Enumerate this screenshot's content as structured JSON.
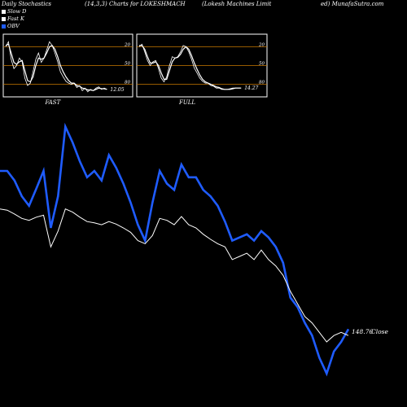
{
  "header": {
    "left": "Daily Stochastics",
    "center": "(14,3,3) Charts for LOKESHMACH",
    "right": "(Lokesh Machines Limit",
    "far_right": "ed) MunafaSutra.com"
  },
  "legend": [
    {
      "label": "Slow  D",
      "color": "#ffffff"
    },
    {
      "label": "Fast K",
      "color": "#ffffff"
    },
    {
      "label": "OBV",
      "color": "#1f5cff"
    }
  ],
  "colors": {
    "background": "#000000",
    "level_line": "#c87800",
    "obv": "#1f5cff",
    "price": "#ffffff"
  },
  "chart_data": [
    {
      "type": "line",
      "label": "FAST",
      "last_value_label": "12.05",
      "ylim": [
        0,
        100
      ],
      "level_lines": [
        20,
        50,
        80
      ],
      "tick_labels": [
        "80",
        "50",
        "20"
      ],
      "series": [
        {
          "name": "Fast K",
          "values": [
            80,
            88,
            60,
            45,
            50,
            62,
            56,
            30,
            18,
            22,
            40,
            60,
            70,
            55,
            62,
            75,
            88,
            82,
            70,
            56,
            40,
            32,
            25,
            22,
            20,
            22,
            15,
            18,
            10,
            14,
            8,
            12,
            10,
            14,
            16,
            12,
            14,
            12
          ]
        },
        {
          "name": "Slow  D",
          "values": [
            82,
            84,
            70,
            55,
            52,
            56,
            58,
            42,
            26,
            24,
            32,
            50,
            62,
            60,
            62,
            70,
            80,
            82,
            76,
            64,
            50,
            40,
            32,
            26,
            22,
            22,
            18,
            17,
            14,
            13,
            11,
            11,
            10,
            12,
            14,
            13,
            13,
            12
          ]
        }
      ]
    },
    {
      "type": "line",
      "label": "FULL",
      "last_value_label": "14.27",
      "ylim": [
        0,
        100
      ],
      "level_lines": [
        20,
        50,
        80
      ],
      "tick_labels": [
        "80",
        "50",
        "20"
      ],
      "series": [
        {
          "name": "Fast K",
          "values": [
            80,
            84,
            72,
            58,
            50,
            56,
            58,
            45,
            30,
            24,
            32,
            50,
            64,
            62,
            64,
            72,
            82,
            80,
            72,
            60,
            46,
            38,
            30,
            25,
            22,
            22,
            18,
            17,
            14,
            14,
            12,
            12,
            12,
            13,
            14,
            14,
            14,
            14
          ]
        },
        {
          "name": "Slow  D",
          "values": [
            82,
            82,
            76,
            64,
            54,
            54,
            56,
            50,
            38,
            28,
            28,
            42,
            56,
            62,
            63,
            68,
            76,
            80,
            76,
            66,
            54,
            44,
            35,
            28,
            24,
            22,
            20,
            18,
            16,
            15,
            13,
            12,
            12,
            12,
            13,
            14,
            14,
            14
          ]
        }
      ]
    },
    {
      "type": "line",
      "last_value_label": "148.76",
      "price_label": "Close",
      "series": [
        {
          "name": "OBV",
          "values": [
            560,
            560,
            545,
            520,
            505,
            532,
            560,
            470,
            520,
            630,
            605,
            575,
            550,
            560,
            545,
            585,
            565,
            540,
            510,
            475,
            450,
            510,
            560,
            540,
            530,
            570,
            550,
            550,
            530,
            520,
            505,
            480,
            450,
            455,
            460,
            450,
            465,
            455,
            440,
            415,
            360,
            345,
            320,
            300,
            265,
            240,
            275,
            290,
            310
          ]
        },
        {
          "name": "Close",
          "values": [
            500,
            498,
            492,
            485,
            482,
            487,
            490,
            440,
            465,
            500,
            495,
            487,
            480,
            478,
            475,
            480,
            476,
            470,
            463,
            450,
            445,
            458,
            485,
            482,
            475,
            488,
            475,
            470,
            460,
            452,
            445,
            440,
            420,
            425,
            430,
            420,
            435,
            420,
            410,
            395,
            370,
            350,
            330,
            320,
            305,
            290,
            300,
            305,
            300
          ]
        }
      ]
    }
  ]
}
